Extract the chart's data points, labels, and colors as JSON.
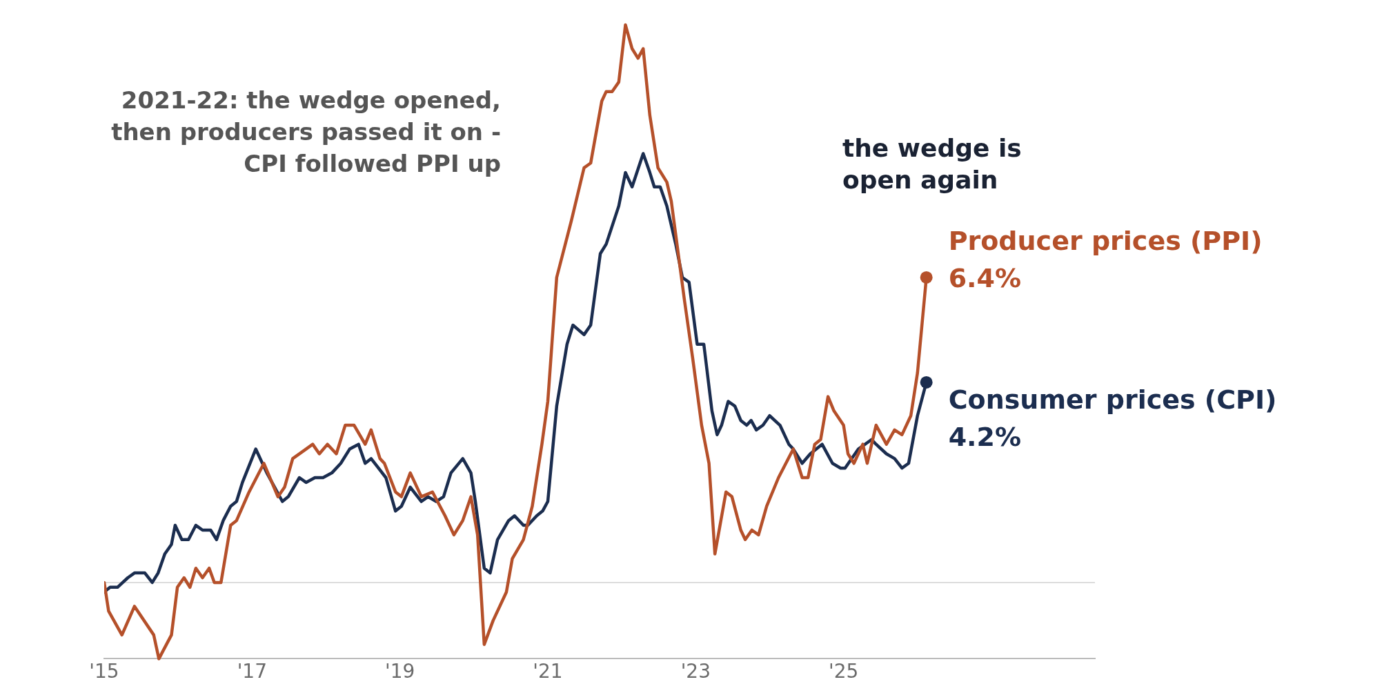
{
  "chart_data": {
    "type": "line",
    "annotations": [
      "2021-22: the wedge opened,\nthen producers passed it on -\nCPI followed PPI up",
      "the wedge is\nopen again"
    ],
    "series": [
      {
        "name": "Producer prices (PPI)",
        "color": "#b5502a",
        "value_labels": [
          null,
          null,
          null,
          null,
          null,
          null,
          null,
          null,
          null,
          null,
          null,
          null,
          null,
          null,
          null,
          null,
          null,
          null,
          null,
          null,
          null,
          null,
          null,
          null,
          null,
          null,
          null,
          null,
          null,
          null,
          null,
          null,
          null,
          null,
          null,
          null,
          null,
          null,
          null,
          null,
          null,
          null,
          null,
          null,
          null,
          null,
          null,
          null,
          null,
          null,
          null,
          null,
          null,
          null,
          null,
          null,
          null,
          null,
          null,
          null,
          null,
          null,
          null,
          null,
          null,
          null,
          null,
          null,
          null,
          null,
          null,
          null,
          null,
          null,
          null,
          null,
          null,
          null,
          null,
          null,
          null,
          null,
          null,
          null,
          null,
          null,
          null,
          null,
          null,
          null,
          null,
          null,
          null,
          null,
          null,
          null,
          null,
          null,
          null,
          "6.4%"
        ],
        "x": [
          2015.0,
          2015.06,
          2015.24,
          2015.41,
          2015.67,
          2015.74,
          2015.91,
          2015.99,
          2016.08,
          2016.16,
          2016.24,
          2016.33,
          2016.42,
          2016.49,
          2016.58,
          2016.71,
          2016.79,
          2016.96,
          2017.16,
          2017.35,
          2017.44,
          2017.55,
          2017.73,
          2017.82,
          2017.91,
          2018.02,
          2018.14,
          2018.26,
          2018.38,
          2018.53,
          2018.61,
          2018.73,
          2018.79,
          2018.94,
          2019.02,
          2019.14,
          2019.29,
          2019.44,
          2019.61,
          2019.73,
          2019.85,
          2019.96,
          2020.05,
          2020.14,
          2020.26,
          2020.44,
          2020.52,
          2020.67,
          2020.79,
          2020.92,
          2021.0,
          2021.12,
          2021.32,
          2021.49,
          2021.58,
          2021.73,
          2021.79,
          2021.87,
          2021.96,
          2022.05,
          2022.14,
          2022.22,
          2022.29,
          2022.38,
          2022.49,
          2022.61,
          2022.67,
          2022.85,
          2022.96,
          2023.08,
          2023.18,
          2023.26,
          2023.41,
          2023.49,
          2023.61,
          2023.67,
          2023.76,
          2023.85,
          2023.96,
          2024.12,
          2024.22,
          2024.32,
          2024.44,
          2024.52,
          2024.61,
          2024.69,
          2024.79,
          2024.87,
          2025.0,
          2025.06,
          2025.14,
          2025.26,
          2025.32,
          2025.44,
          2025.58,
          2025.69,
          2025.79,
          2025.91,
          2026.0,
          2026.12
        ],
        "values": [
          0.0,
          -0.6,
          -1.1,
          -0.5,
          -1.1,
          -1.6,
          -1.1,
          -0.1,
          0.1,
          -0.1,
          0.3,
          0.1,
          0.3,
          0.0,
          0.0,
          1.2,
          1.3,
          1.9,
          2.5,
          1.8,
          2.0,
          2.6,
          2.8,
          2.9,
          2.7,
          2.9,
          2.7,
          3.3,
          3.3,
          2.9,
          3.2,
          2.6,
          2.5,
          1.9,
          1.8,
          2.3,
          1.8,
          1.9,
          1.4,
          1.0,
          1.3,
          1.8,
          1.0,
          -1.3,
          -0.8,
          -0.2,
          0.5,
          0.9,
          1.6,
          2.9,
          3.8,
          6.4,
          7.6,
          8.7,
          8.8,
          10.1,
          10.3,
          10.3,
          10.5,
          11.7,
          11.2,
          11.0,
          11.2,
          9.8,
          8.7,
          8.4,
          8.0,
          5.9,
          4.7,
          3.3,
          2.5,
          0.6,
          1.9,
          1.8,
          1.1,
          0.9,
          1.1,
          1.0,
          1.6,
          2.2,
          2.5,
          2.8,
          2.2,
          2.2,
          2.9,
          3.0,
          3.9,
          3.6,
          3.3,
          2.7,
          2.5,
          2.9,
          2.5,
          3.3,
          2.9,
          3.2,
          3.1,
          3.5,
          4.4,
          6.4
        ]
      },
      {
        "name": "Consumer prices (CPI)",
        "color": "#1b2d4f",
        "value_labels": [
          null,
          null,
          null,
          null,
          null,
          null,
          null,
          null,
          null,
          null,
          null,
          null,
          null,
          null,
          null,
          null,
          null,
          null,
          null,
          null,
          null,
          null,
          null,
          null,
          null,
          null,
          null,
          null,
          null,
          null,
          null,
          null,
          null,
          null,
          null,
          null,
          null,
          null,
          null,
          null,
          null,
          null,
          null,
          null,
          null,
          null,
          null,
          null,
          null,
          null,
          null,
          null,
          null,
          null,
          null,
          null,
          null,
          null,
          null,
          null,
          null,
          null,
          null,
          null,
          null,
          null,
          null,
          null,
          null,
          null,
          null,
          null,
          null,
          null,
          null,
          null,
          null,
          null,
          null,
          null,
          null,
          null,
          null,
          null,
          null,
          null,
          null,
          null,
          null,
          null,
          null,
          null,
          null,
          null,
          null,
          null,
          null,
          null,
          null,
          null,
          null,
          null,
          null,
          null,
          null,
          null,
          null,
          "4.2%"
        ],
        "x": [
          2015.0,
          2015.08,
          2015.18,
          2015.32,
          2015.41,
          2015.55,
          2015.65,
          2015.73,
          2015.82,
          2015.91,
          2015.96,
          2016.05,
          2016.14,
          2016.24,
          2016.33,
          2016.44,
          2016.52,
          2016.61,
          2016.71,
          2016.79,
          2016.87,
          2017.05,
          2017.2,
          2017.34,
          2017.41,
          2017.49,
          2017.64,
          2017.73,
          2017.85,
          2017.96,
          2018.08,
          2018.2,
          2018.32,
          2018.44,
          2018.53,
          2018.61,
          2018.71,
          2018.81,
          2018.94,
          2019.02,
          2019.14,
          2019.29,
          2019.38,
          2019.49,
          2019.59,
          2019.69,
          2019.85,
          2019.96,
          2020.02,
          2020.14,
          2020.22,
          2020.32,
          2020.47,
          2020.55,
          2020.67,
          2020.73,
          2020.85,
          2020.93,
          2021.0,
          2021.12,
          2021.26,
          2021.34,
          2021.49,
          2021.58,
          2021.71,
          2021.79,
          2021.96,
          2022.05,
          2022.14,
          2022.29,
          2022.38,
          2022.44,
          2022.52,
          2022.61,
          2022.73,
          2022.82,
          2022.91,
          2023.02,
          2023.11,
          2023.22,
          2023.29,
          2023.35,
          2023.44,
          2023.53,
          2023.61,
          2023.69,
          2023.75,
          2023.82,
          2023.91,
          2024.0,
          2024.14,
          2024.26,
          2024.32,
          2024.44,
          2024.55,
          2024.71,
          2024.85,
          2024.96,
          2025.02,
          2025.2,
          2025.38,
          2025.44,
          2025.58,
          2025.69,
          2025.79,
          2025.88,
          2026.0,
          2026.12
        ],
        "values": [
          -0.2,
          -0.1,
          -0.1,
          0.1,
          0.2,
          0.2,
          0.0,
          0.2,
          0.6,
          0.8,
          1.2,
          0.9,
          0.9,
          1.2,
          1.1,
          1.1,
          0.9,
          1.3,
          1.6,
          1.7,
          2.1,
          2.8,
          2.3,
          1.9,
          1.7,
          1.8,
          2.2,
          2.1,
          2.2,
          2.2,
          2.3,
          2.5,
          2.8,
          2.9,
          2.5,
          2.6,
          2.4,
          2.2,
          1.5,
          1.6,
          2.0,
          1.7,
          1.8,
          1.7,
          1.8,
          2.3,
          2.6,
          2.3,
          1.7,
          0.3,
          0.2,
          0.9,
          1.3,
          1.4,
          1.2,
          1.2,
          1.4,
          1.5,
          1.7,
          3.7,
          5.0,
          5.4,
          5.2,
          5.4,
          6.9,
          7.1,
          7.9,
          8.6,
          8.3,
          9.0,
          8.6,
          8.3,
          8.3,
          7.9,
          7.1,
          6.4,
          6.3,
          5.0,
          5.0,
          3.6,
          3.1,
          3.3,
          3.8,
          3.7,
          3.4,
          3.3,
          3.4,
          3.2,
          3.3,
          3.5,
          3.3,
          2.9,
          2.8,
          2.5,
          2.7,
          2.9,
          2.5,
          2.4,
          2.4,
          2.8,
          3.0,
          2.9,
          2.7,
          2.6,
          2.4,
          2.5,
          3.5,
          4.2
        ]
      }
    ],
    "xlim": [
      2015,
      2028.4
    ],
    "xticks": [
      {
        "value": 2015,
        "label": "'15"
      },
      {
        "value": 2017,
        "label": "'17"
      },
      {
        "value": 2019,
        "label": "'19"
      },
      {
        "value": 2021,
        "label": "'21"
      },
      {
        "value": 2023,
        "label": "'23"
      },
      {
        "value": 2025,
        "label": "'25"
      }
    ],
    "ref_lines": [
      {
        "axis": "y",
        "value": 0,
        "color": "#d0d0d0"
      }
    ],
    "tick_labels": "x",
    "grid": false,
    "legend": false,
    "marker": "none",
    "line_style": "solid"
  }
}
